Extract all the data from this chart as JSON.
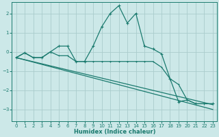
{
  "xlabel": "Humidex (Indice chaleur)",
  "background_color": "#cce8e8",
  "grid_color": "#aacccc",
  "line_color": "#1a7a6e",
  "xlim": [
    -0.5,
    23.5
  ],
  "ylim": [
    -3.6,
    2.6
  ],
  "yticks": [
    -3,
    -2,
    -1,
    0,
    1,
    2
  ],
  "xticks": [
    0,
    1,
    2,
    3,
    4,
    5,
    6,
    7,
    8,
    9,
    10,
    11,
    12,
    13,
    14,
    15,
    16,
    17,
    18,
    19,
    20,
    21,
    22,
    23
  ],
  "line1_x": [
    0,
    1,
    2,
    3,
    4,
    5,
    6,
    7,
    8,
    9,
    10,
    11,
    12,
    13,
    14,
    15,
    16,
    17,
    18,
    19,
    20,
    21,
    22,
    23
  ],
  "line1_y": [
    -0.3,
    -0.05,
    -0.3,
    -0.3,
    0.0,
    0.3,
    0.3,
    -0.5,
    -0.5,
    0.3,
    1.3,
    2.0,
    2.4,
    1.5,
    2.0,
    0.3,
    0.15,
    -0.1,
    -1.4,
    -2.6,
    -2.5,
    -2.7,
    -2.7,
    -2.7
  ],
  "line2_x": [
    0,
    1,
    2,
    3,
    4,
    5,
    6,
    7,
    8,
    9,
    10,
    11,
    12,
    13,
    14,
    15,
    16,
    17,
    18,
    19,
    20,
    21,
    22,
    23
  ],
  "line2_y": [
    -0.3,
    -0.05,
    -0.3,
    -0.3,
    0.0,
    -0.2,
    -0.2,
    -0.5,
    -0.5,
    -0.5,
    -0.5,
    -0.5,
    -0.5,
    -0.5,
    -0.5,
    -0.5,
    -0.5,
    -0.8,
    -1.4,
    -1.7,
    -2.5,
    -2.7,
    -2.7,
    -2.7
  ],
  "line3_x": [
    0,
    23
  ],
  "line3_y": [
    -0.3,
    -2.75
  ],
  "line4_x": [
    0,
    23
  ],
  "line4_y": [
    -0.3,
    -3.0
  ]
}
